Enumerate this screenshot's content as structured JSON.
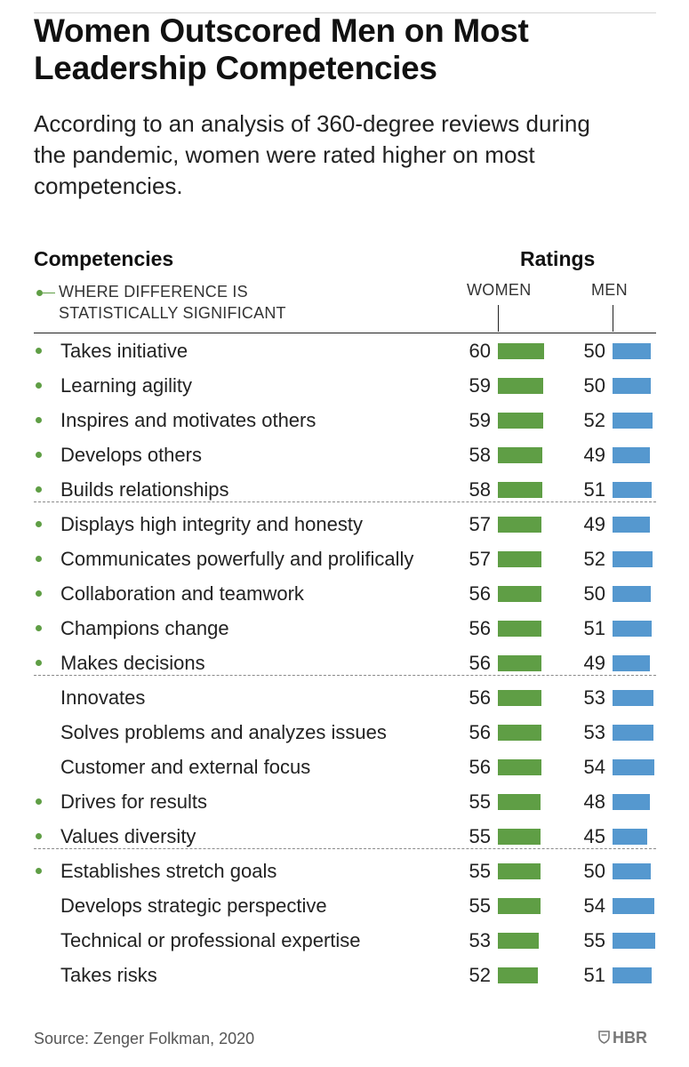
{
  "chart_data": {
    "type": "bar",
    "title": "Women Outscored Men on Most Leadership Competencies",
    "subtitle": "According to an analysis of 360-degree reviews during the pandemic, women were rated higher on most competencies.",
    "row_header": "Competencies",
    "value_header": "Ratings",
    "legend_note": [
      "WHERE DIFFERENCE IS",
      "STATISTICALLY SIGNIFICANT"
    ],
    "series": [
      {
        "name": "WOMEN",
        "color": "#5f9e45",
        "values": [
          60,
          59,
          59,
          58,
          58,
          57,
          57,
          56,
          56,
          56,
          56,
          56,
          56,
          55,
          55,
          55,
          55,
          53,
          52
        ]
      },
      {
        "name": "MEN",
        "color": "#5598cf",
        "values": [
          50,
          50,
          52,
          49,
          51,
          49,
          52,
          50,
          51,
          49,
          53,
          53,
          54,
          48,
          45,
          50,
          54,
          55,
          51
        ]
      }
    ],
    "categories": [
      "Takes initiative",
      "Learning agility",
      "Inspires and motivates others",
      "Develops others",
      "Builds relationships",
      "Displays high integrity and honesty",
      "Communicates powerfully and prolifically",
      "Collaboration and teamwork",
      "Champions change",
      "Makes decisions",
      "Innovates",
      "Solves problems and analyzes issues",
      "Customer and external focus",
      "Drives for results",
      "Values diversity",
      "Establishes stretch goals",
      "Develops strategic perspective",
      "Technical or professional expertise",
      "Takes risks"
    ],
    "significant": [
      true,
      true,
      true,
      true,
      true,
      true,
      true,
      true,
      true,
      true,
      false,
      false,
      false,
      true,
      true,
      true,
      false,
      false,
      false
    ],
    "group_size": 5,
    "source": "Source: Zenger Folkman, 2020",
    "publisher": "HBR"
  }
}
